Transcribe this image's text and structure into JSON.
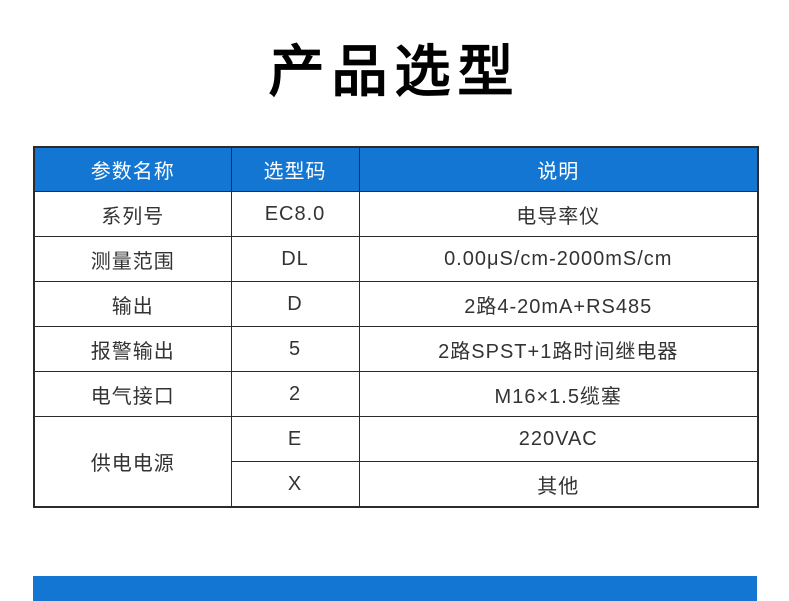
{
  "page": {
    "title": "产品选型"
  },
  "table": {
    "headers": [
      "参数名称",
      "选型码",
      "说明"
    ],
    "rows": [
      {
        "param": "系列号",
        "code": "EC8.0",
        "desc": "电导率仪"
      },
      {
        "param": "测量范围",
        "code": "DL",
        "desc": "0.00μS/cm-2000mS/cm"
      },
      {
        "param": "输出",
        "code": "D",
        "desc": "2路4-20mA+RS485"
      },
      {
        "param": "报警输出",
        "code": "5",
        "desc": "2路SPST+1路时间继电器"
      },
      {
        "param": "电气接口",
        "code": "2",
        "desc": "M16×1.5缆塞"
      },
      {
        "param": "供电电源",
        "code": "E",
        "desc": "220VAC"
      },
      {
        "param": "供电电源",
        "code": "X",
        "desc": "其他"
      }
    ]
  },
  "colors": {
    "header_bg": "#1376d2",
    "footer_bar": "#1376d2",
    "border": "#2b2b2b",
    "title_text": "#000000",
    "header_text": "#ffffff",
    "body_text": "#333333"
  }
}
